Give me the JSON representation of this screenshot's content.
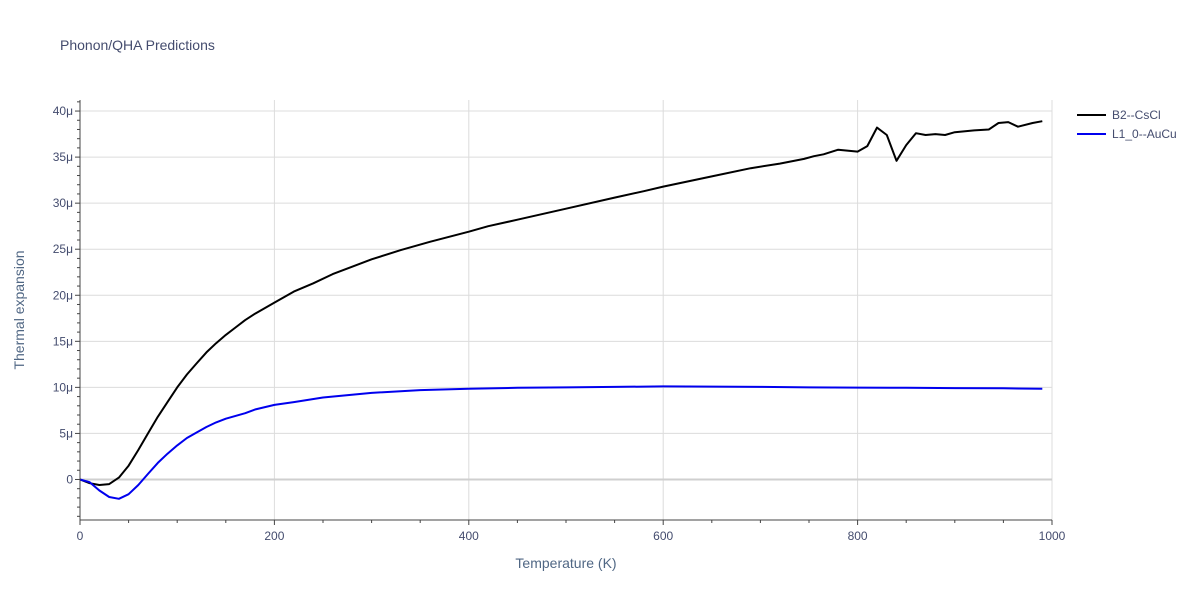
{
  "chart_data": {
    "type": "line",
    "title": "Phonon/QHA Predictions",
    "xlabel": "Temperature (K)",
    "ylabel": "Thermal expansion",
    "xlim": [
      0,
      1000
    ],
    "ylim": [
      -4.4e-06,
      4.12e-05
    ],
    "x_ticks": [
      0,
      200,
      400,
      600,
      800,
      1000
    ],
    "x_tick_labels": [
      "0",
      "200",
      "400",
      "600",
      "800",
      "1000"
    ],
    "y_ticks": [
      0,
      5e-06,
      1e-05,
      1.5e-05,
      2e-05,
      2.5e-05,
      3e-05,
      3.5e-05,
      4e-05
    ],
    "y_tick_labels": [
      "0",
      "5μ",
      "10μ",
      "15μ",
      "20μ",
      "25μ",
      "30μ",
      "35μ",
      "40μ"
    ],
    "grid": true,
    "legend": "top-right, outside plot",
    "series": [
      {
        "name": "B2--CsCl",
        "color": "#000000",
        "x": [
          0,
          10,
          20,
          30,
          40,
          50,
          60,
          70,
          80,
          90,
          100,
          110,
          120,
          130,
          140,
          150,
          160,
          170,
          180,
          200,
          220,
          240,
          260,
          280,
          300,
          330,
          360,
          400,
          420,
          450,
          500,
          550,
          580,
          600,
          650,
          690,
          720,
          745,
          755,
          765,
          780,
          800,
          810,
          820,
          830,
          840,
          850,
          860,
          870,
          880,
          890,
          900,
          920,
          935,
          945,
          955,
          965,
          980,
          990
        ],
        "y": [
          0,
          -4e-07,
          -6e-07,
          -5e-07,
          2e-07,
          1.5e-06,
          3.2e-06,
          5e-06,
          6.8e-06,
          8.4e-06,
          1e-05,
          1.14e-05,
          1.26e-05,
          1.38e-05,
          1.48e-05,
          1.57e-05,
          1.65e-05,
          1.73e-05,
          1.8e-05,
          1.92e-05,
          2.04e-05,
          2.13e-05,
          2.23e-05,
          2.31e-05,
          2.39e-05,
          2.49e-05,
          2.58e-05,
          2.69e-05,
          2.75e-05,
          2.82e-05,
          2.94e-05,
          3.06e-05,
          3.13e-05,
          3.18e-05,
          3.29e-05,
          3.38e-05,
          3.43e-05,
          3.48e-05,
          3.51e-05,
          3.53e-05,
          3.58e-05,
          3.56e-05,
          3.62e-05,
          3.82e-05,
          3.74e-05,
          3.46e-05,
          3.63e-05,
          3.76e-05,
          3.74e-05,
          3.75e-05,
          3.74e-05,
          3.77e-05,
          3.79e-05,
          3.8e-05,
          3.87e-05,
          3.88e-05,
          3.83e-05,
          3.87e-05,
          3.89e-05
        ]
      },
      {
        "name": "L1_0--AuCu",
        "color": "#0000ee",
        "x": [
          0,
          10,
          20,
          30,
          40,
          50,
          60,
          70,
          80,
          90,
          100,
          110,
          120,
          130,
          140,
          150,
          160,
          170,
          180,
          200,
          220,
          250,
          300,
          350,
          400,
          450,
          500,
          550,
          600,
          650,
          700,
          750,
          800,
          850,
          900,
          950,
          990
        ],
        "y": [
          0,
          -3e-07,
          -1.2e-06,
          -1.9e-06,
          -2.1e-06,
          -1.6e-06,
          -6e-07,
          6e-07,
          1.8e-06,
          2.8e-06,
          3.7e-06,
          4.5e-06,
          5.1e-06,
          5.7e-06,
          6.2e-06,
          6.6e-06,
          6.9e-06,
          7.2e-06,
          7.6e-06,
          8.1e-06,
          8.4e-06,
          8.9e-06,
          9.4e-06,
          9.7e-06,
          9.85e-06,
          9.95e-06,
          1e-05,
          1.005e-05,
          1.01e-05,
          1.008e-05,
          1.005e-05,
          1e-05,
          9.98e-06,
          9.95e-06,
          9.92e-06,
          9.9e-06,
          9.85e-06
        ]
      }
    ]
  }
}
